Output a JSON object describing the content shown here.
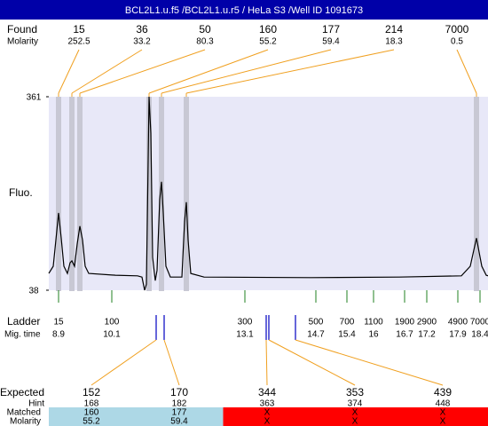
{
  "chart_data": {
    "type": "electropherogram",
    "title": "BCL2L1.u.f5 /BCL2L1.u.r5 / HeLa S3 /Well ID 1091673",
    "ylabel": "Fluo.",
    "ylim": [
      38,
      361
    ],
    "yticks": [
      38,
      361
    ],
    "xlim": [
      8.68,
      18.58
    ],
    "background": "#e8e8f8",
    "line_color": "#000000",
    "x": [
      8.68,
      8.78,
      8.84,
      8.9,
      8.96,
      9.02,
      9.1,
      9.16,
      9.2,
      9.26,
      9.32,
      9.38,
      9.44,
      9.5,
      9.58,
      10.18,
      10.68,
      10.78,
      10.84,
      10.88,
      10.92,
      10.94,
      10.98,
      11.02,
      11.08,
      11.12,
      11.18,
      11.22,
      11.26,
      11.32,
      11.42,
      11.68,
      11.74,
      11.78,
      11.82,
      11.88,
      12.18,
      14.58,
      16.58,
      17.98,
      18.18,
      18.32,
      18.44,
      18.54,
      18.58
    ],
    "values": [
      66,
      78,
      122,
      167,
      125,
      78,
      66,
      84,
      87,
      78,
      115,
      145,
      122,
      78,
      66,
      63,
      62,
      60,
      38,
      48,
      256,
      361,
      300,
      93,
      54,
      71,
      189,
      219,
      167,
      78,
      60,
      60,
      152,
      185,
      122,
      66,
      60,
      59,
      60,
      62,
      78,
      125,
      78,
      63,
      62
    ],
    "found": {
      "label": "Found",
      "molarity_label": "Molarity",
      "sizes": [
        15,
        36,
        50,
        160,
        177,
        214,
        7000
      ],
      "molarity": [
        252.5,
        33.2,
        80.3,
        55.2,
        59.4,
        18.3,
        0.5
      ],
      "times": [
        8.9,
        9.2,
        9.38,
        10.94,
        11.22,
        11.78,
        18.32
      ],
      "band_color": "#c8c8d4",
      "connector_color": "#f0a020"
    },
    "ladder": {
      "label": "Ladder",
      "time_label": "Mig. time",
      "sizes": [
        15,
        100,
        300,
        500,
        700,
        1100,
        1900,
        2900,
        4900,
        7000
      ],
      "times": [
        8.9,
        10.1,
        13.1,
        14.7,
        15.4,
        16,
        16.7,
        17.2,
        17.9,
        18.4
      ],
      "color": "#208020"
    },
    "expected": {
      "label": "Expected",
      "hint_label": "Hint",
      "matched_label": "Matched",
      "molarity_label": "Molarity",
      "sizes": [
        152,
        170,
        344,
        353,
        439
      ],
      "hint": [
        168,
        182,
        363,
        374,
        448
      ],
      "matched": [
        160,
        177,
        "X",
        "X",
        "X"
      ],
      "molarity": [
        55.2,
        59.4,
        "X",
        "X",
        "X"
      ],
      "times": [
        11.1,
        11.28,
        13.58,
        13.64,
        14.24
      ],
      "marker_color": "#0000c0",
      "connector_color": "#f0a020",
      "matched_color": "#add8e6",
      "unmatched_color": "#ff0000"
    }
  }
}
